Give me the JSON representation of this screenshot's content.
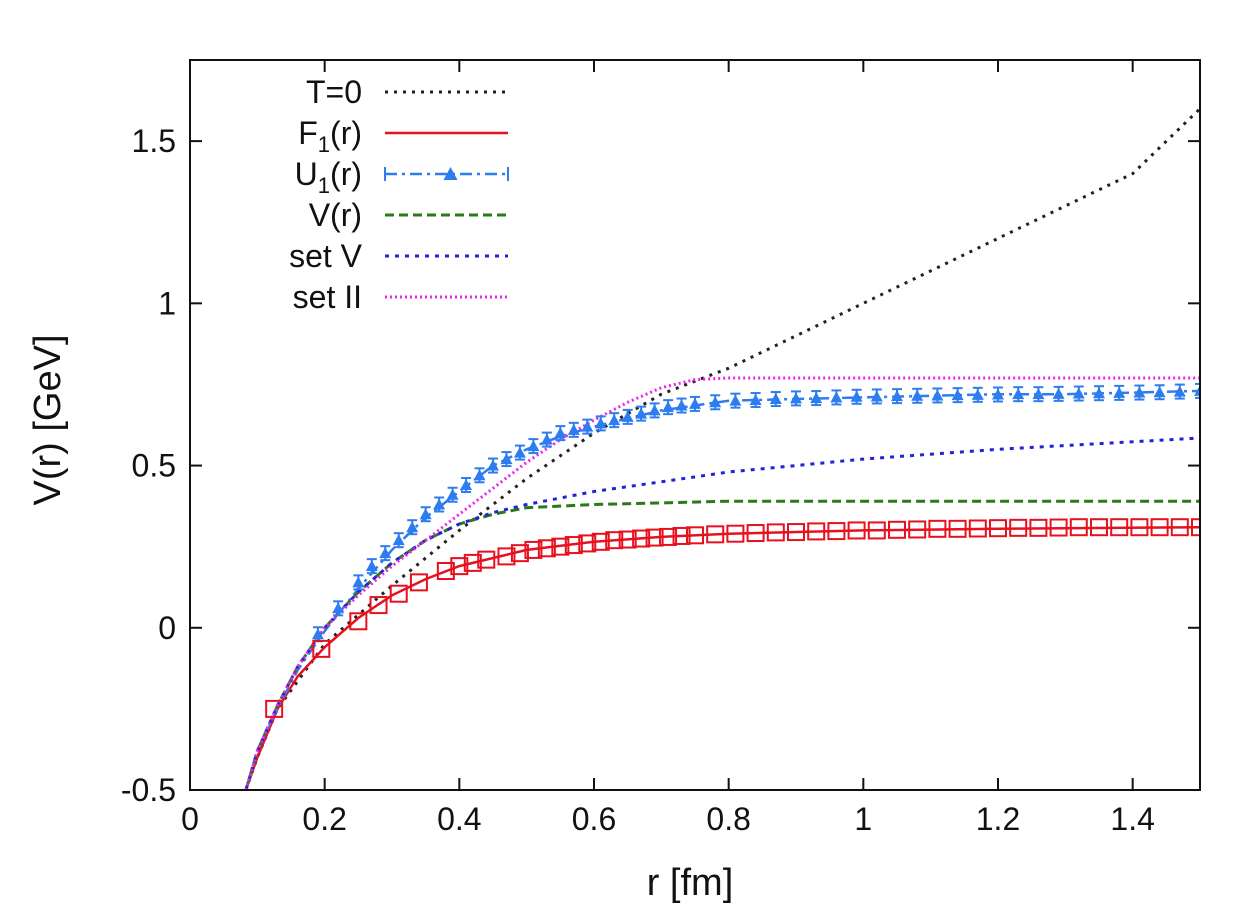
{
  "chart_data": {
    "type": "line",
    "title": "",
    "xlabel": "r [fm]",
    "ylabel": "V(r) [GeV]",
    "xlim": [
      0,
      1.5
    ],
    "ylim": [
      -0.5,
      1.75
    ],
    "xticks": [
      0,
      0.2,
      0.4,
      0.6,
      0.8,
      1,
      1.2,
      1.4
    ],
    "xtick_labels": [
      "0",
      "0.2",
      "0.4",
      "0.6",
      "0.8",
      "1",
      "1.2",
      "1.4"
    ],
    "yticks": [
      -0.5,
      0,
      0.5,
      1,
      1.5
    ],
    "ytick_labels": [
      "-0.5",
      "0",
      "0.5",
      "1",
      "1.5"
    ],
    "grid": false,
    "legend_position": "top-left",
    "colors": {
      "T0": "#222222",
      "F1": "#e8101e",
      "U1": "#2d7df0",
      "V": "#2a7a1a",
      "setV": "#2222dd",
      "setII": "#ee22ee"
    },
    "legend": [
      {
        "key": "T0",
        "label": "T=0",
        "style": "dotted"
      },
      {
        "key": "F1",
        "label": "F1(r)",
        "style": "solid"
      },
      {
        "key": "U1",
        "label": "U1(r)",
        "style": "dashdot-triangle-errorbar"
      },
      {
        "key": "V",
        "label": "V(r)",
        "style": "dashed"
      },
      {
        "key": "setV",
        "label": "set V",
        "style": "dotted"
      },
      {
        "key": "setII",
        "label": "set II",
        "style": "dotted-fine"
      }
    ],
    "series": [
      {
        "key": "T0",
        "name": "T=0",
        "x": [
          0.083,
          0.1,
          0.13,
          0.2,
          0.3,
          0.4,
          0.5,
          0.6,
          0.7,
          0.8,
          0.9,
          1.0,
          1.1,
          1.2,
          1.3,
          1.4,
          1.5
        ],
        "y": [
          -0.5,
          -0.4,
          -0.25,
          -0.05,
          0.13,
          0.3,
          0.46,
          0.6,
          0.72,
          0.8,
          0.9,
          1.0,
          1.1,
          1.2,
          1.3,
          1.4,
          1.6
        ]
      },
      {
        "key": "F1",
        "name": "F1(r)",
        "x": [
          0.083,
          0.1,
          0.13,
          0.16,
          0.2,
          0.25,
          0.3,
          0.35,
          0.4,
          0.5,
          0.6,
          0.7,
          0.8,
          1.0,
          1.2,
          1.5
        ],
        "y": [
          -0.5,
          -0.4,
          -0.25,
          -0.15,
          -0.06,
          0.03,
          0.1,
          0.15,
          0.19,
          0.24,
          0.265,
          0.28,
          0.29,
          0.3,
          0.305,
          0.31
        ]
      },
      {
        "key": "U1",
        "name": "U1(r)",
        "x": [
          0.083,
          0.1,
          0.13,
          0.16,
          0.2,
          0.25,
          0.3,
          0.35,
          0.4,
          0.45,
          0.5,
          0.55,
          0.6,
          0.65,
          0.7,
          0.75,
          0.8,
          0.9,
          1.0,
          1.1,
          1.2,
          1.3,
          1.4,
          1.5
        ],
        "y": [
          -0.5,
          -0.38,
          -0.25,
          -0.13,
          -0.01,
          0.12,
          0.24,
          0.34,
          0.42,
          0.5,
          0.55,
          0.59,
          0.62,
          0.645,
          0.67,
          0.685,
          0.7,
          0.705,
          0.71,
          0.715,
          0.72,
          0.72,
          0.725,
          0.73
        ]
      },
      {
        "key": "V",
        "name": "V(r)",
        "x": [
          0.083,
          0.1,
          0.13,
          0.16,
          0.2,
          0.25,
          0.3,
          0.35,
          0.4,
          0.45,
          0.5,
          0.6,
          0.7,
          0.8,
          1.0,
          1.2,
          1.5
        ],
        "y": [
          -0.5,
          -0.38,
          -0.24,
          -0.12,
          0.0,
          0.11,
          0.2,
          0.27,
          0.32,
          0.35,
          0.37,
          0.38,
          0.385,
          0.39,
          0.39,
          0.39,
          0.39
        ]
      },
      {
        "key": "setV",
        "name": "set V",
        "x": [
          0.083,
          0.1,
          0.13,
          0.16,
          0.2,
          0.25,
          0.3,
          0.35,
          0.4,
          0.45,
          0.5,
          0.6,
          0.7,
          0.8,
          1.0,
          1.2,
          1.5
        ],
        "y": [
          -0.5,
          -0.38,
          -0.24,
          -0.12,
          0.0,
          0.11,
          0.2,
          0.27,
          0.32,
          0.355,
          0.38,
          0.42,
          0.45,
          0.48,
          0.52,
          0.55,
          0.585
        ]
      },
      {
        "key": "setII",
        "name": "set II",
        "x": [
          0.083,
          0.1,
          0.13,
          0.16,
          0.2,
          0.25,
          0.3,
          0.35,
          0.4,
          0.45,
          0.5,
          0.55,
          0.6,
          0.65,
          0.7,
          0.75,
          0.8,
          0.9,
          1.0,
          1.2,
          1.5
        ],
        "y": [
          -0.5,
          -0.38,
          -0.24,
          -0.12,
          0.0,
          0.1,
          0.19,
          0.27,
          0.35,
          0.43,
          0.51,
          0.58,
          0.64,
          0.695,
          0.74,
          0.765,
          0.77,
          0.77,
          0.77,
          0.77,
          0.77
        ]
      }
    ],
    "markers": {
      "F1": {
        "symbol": "open-square",
        "x": [
          0.125,
          0.195,
          0.25,
          0.28,
          0.31,
          0.34,
          0.38,
          0.4,
          0.42,
          0.44,
          0.47,
          0.49,
          0.51,
          0.53,
          0.55,
          0.57,
          0.59,
          0.61,
          0.63,
          0.65,
          0.67,
          0.69,
          0.71,
          0.73,
          0.75,
          0.78,
          0.81,
          0.84,
          0.87,
          0.9,
          0.93,
          0.96,
          0.99,
          1.02,
          1.05,
          1.08,
          1.11,
          1.14,
          1.17,
          1.2,
          1.23,
          1.26,
          1.29,
          1.32,
          1.35,
          1.38,
          1.41,
          1.44,
          1.47,
          1.5
        ],
        "y": [
          -0.25,
          -0.065,
          0.02,
          0.07,
          0.105,
          0.14,
          0.175,
          0.19,
          0.2,
          0.21,
          0.22,
          0.23,
          0.24,
          0.245,
          0.25,
          0.255,
          0.26,
          0.265,
          0.27,
          0.272,
          0.275,
          0.278,
          0.28,
          0.283,
          0.285,
          0.288,
          0.29,
          0.292,
          0.294,
          0.295,
          0.297,
          0.298,
          0.3,
          0.3,
          0.302,
          0.303,
          0.305,
          0.305,
          0.306,
          0.307,
          0.308,
          0.308,
          0.309,
          0.31,
          0.31,
          0.31,
          0.31,
          0.31,
          0.31,
          0.31
        ]
      },
      "U1": {
        "symbol": "filled-triangle",
        "x": [
          0.19,
          0.22,
          0.25,
          0.27,
          0.29,
          0.31,
          0.33,
          0.35,
          0.37,
          0.39,
          0.41,
          0.43,
          0.45,
          0.47,
          0.49,
          0.51,
          0.53,
          0.55,
          0.57,
          0.59,
          0.61,
          0.63,
          0.65,
          0.67,
          0.69,
          0.71,
          0.73,
          0.75,
          0.78,
          0.81,
          0.84,
          0.87,
          0.9,
          0.93,
          0.96,
          0.99,
          1.02,
          1.05,
          1.08,
          1.11,
          1.14,
          1.17,
          1.2,
          1.23,
          1.26,
          1.29,
          1.32,
          1.35,
          1.38,
          1.41,
          1.44,
          1.47,
          1.5
        ],
        "y": [
          -0.02,
          0.06,
          0.14,
          0.19,
          0.23,
          0.27,
          0.31,
          0.35,
          0.38,
          0.41,
          0.44,
          0.47,
          0.5,
          0.52,
          0.54,
          0.56,
          0.58,
          0.6,
          0.61,
          0.62,
          0.63,
          0.64,
          0.65,
          0.66,
          0.67,
          0.68,
          0.685,
          0.69,
          0.695,
          0.7,
          0.702,
          0.705,
          0.707,
          0.708,
          0.71,
          0.712,
          0.713,
          0.714,
          0.715,
          0.716,
          0.717,
          0.718,
          0.719,
          0.72,
          0.72,
          0.721,
          0.722,
          0.723,
          0.724,
          0.725,
          0.726,
          0.728,
          0.73
        ]
      }
    }
  }
}
